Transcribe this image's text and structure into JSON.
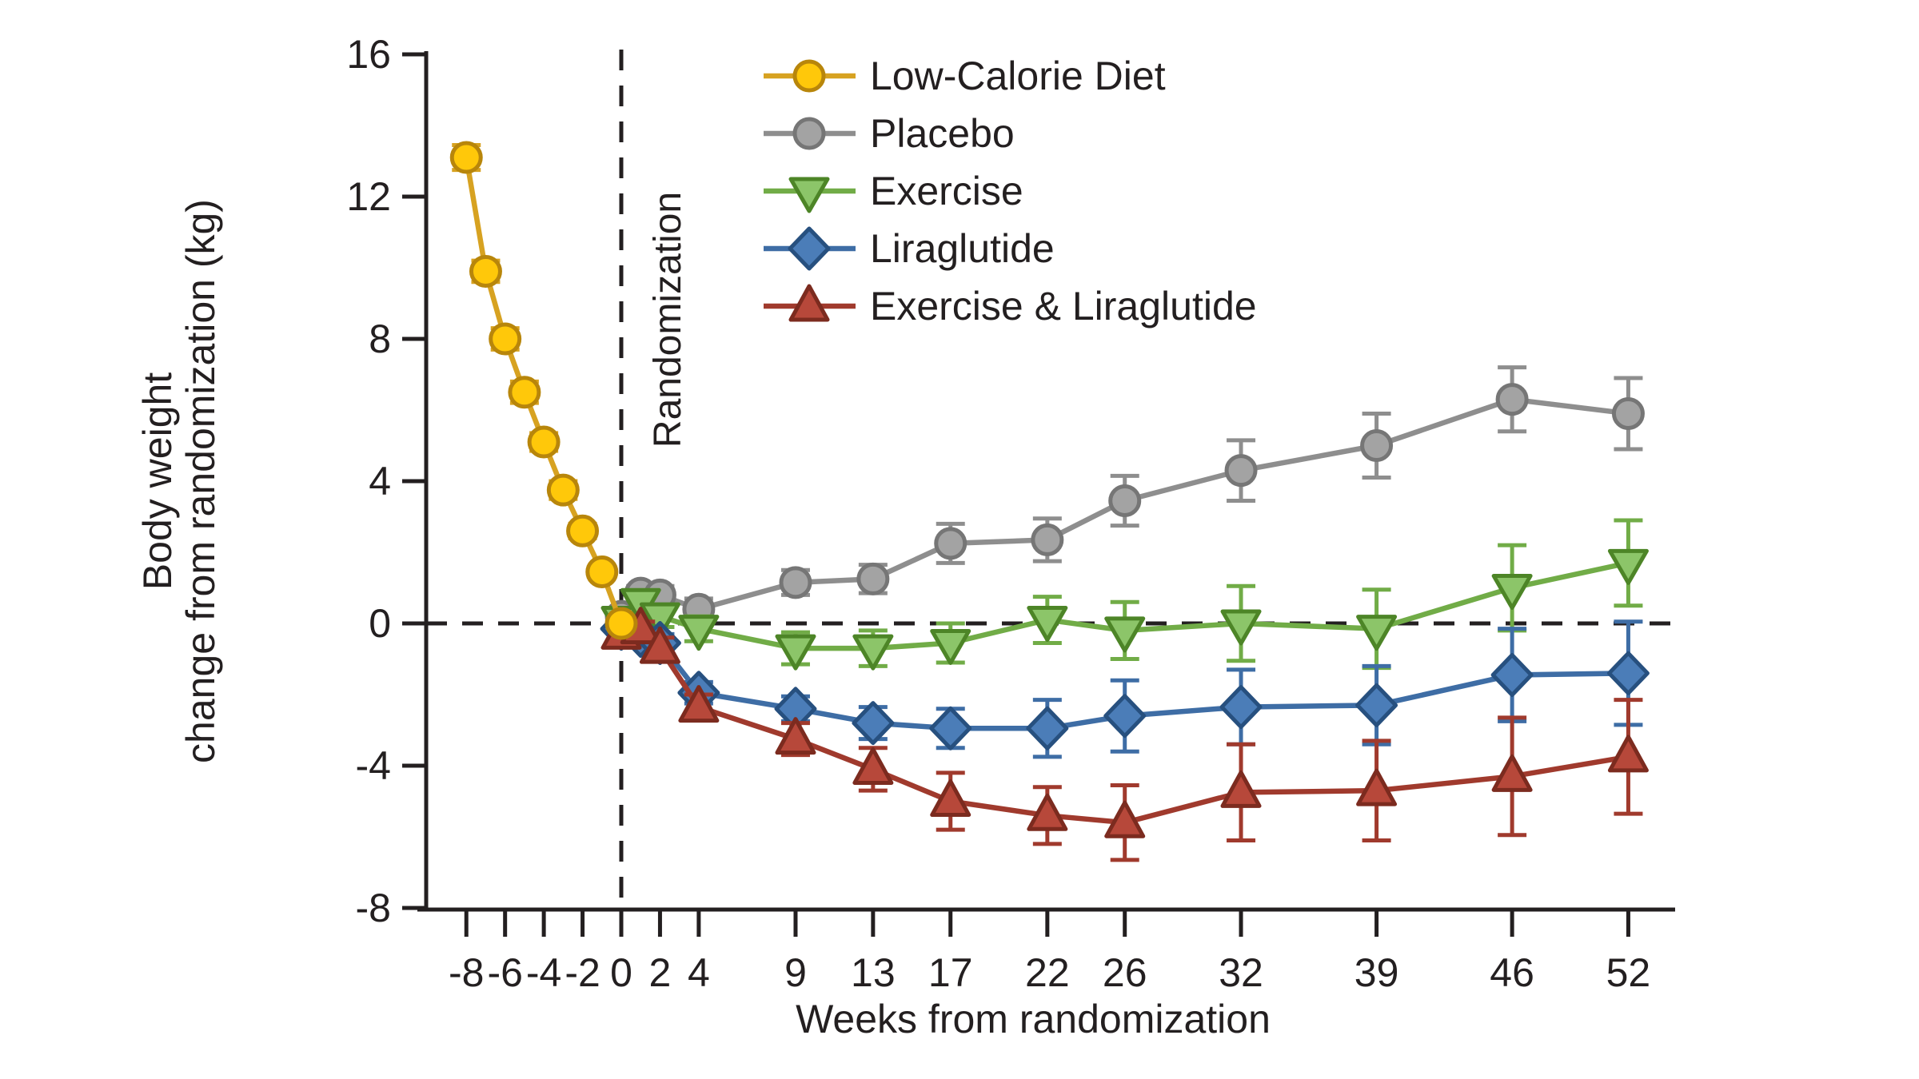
{
  "chart_data": {
    "type": "line",
    "title": "",
    "xlabel": "Weeks from randomization",
    "ylabel_line1": "Body weight",
    "ylabel_line2": "change from randomization (kg)",
    "annotation_randomization": "Randomization",
    "xlim": [
      -10.2,
      54.5
    ],
    "ylim": [
      -8,
      16
    ],
    "x_ticks": [
      -8,
      -6,
      -4,
      -2,
      0,
      2,
      4,
      9,
      13,
      17,
      22,
      26,
      32,
      39,
      46,
      52
    ],
    "y_ticks": [
      16,
      12,
      8,
      4,
      0,
      -4,
      -8
    ],
    "grid": "off",
    "reference_lines": {
      "vertical_at_week": 0,
      "horizontal_at_kg": 0,
      "style": "dashed",
      "color": "#231f20"
    },
    "axis_color": "#231f20",
    "legend_position": "top-center",
    "series": [
      {
        "name": "Low-Calorie Diet",
        "marker": "circle",
        "line_color": "#d7a221",
        "fill": "#ffc80a",
        "edge": "#b8860b",
        "x": [
          -8,
          -7,
          -6,
          -5,
          -4,
          -3,
          -2,
          -1,
          0
        ],
        "y": [
          13.1,
          9.9,
          8.0,
          6.5,
          5.1,
          3.75,
          2.6,
          1.45,
          0
        ],
        "err": [
          0.35,
          0.3,
          0.3,
          0.3,
          0.25,
          0.25,
          0.2,
          0.15,
          0.1
        ]
      },
      {
        "name": "Placebo",
        "marker": "circle",
        "line_color": "#8e8e8e",
        "fill": "#a3a3a3",
        "edge": "#767676",
        "x": [
          0,
          1,
          2,
          4,
          9,
          13,
          17,
          22,
          26,
          32,
          39,
          46,
          52
        ],
        "y": [
          0.2,
          0.85,
          0.8,
          0.4,
          1.15,
          1.25,
          2.25,
          2.35,
          3.45,
          4.3,
          5.0,
          6.3,
          5.9
        ],
        "err": [
          0.15,
          0.2,
          0.25,
          0.3,
          0.35,
          0.4,
          0.55,
          0.6,
          0.7,
          0.85,
          0.9,
          0.9,
          1.0
        ]
      },
      {
        "name": "Exercise",
        "marker": "triangle-down",
        "line_color": "#71ac47",
        "fill": "#8cc569",
        "edge": "#4d8527",
        "x": [
          0,
          1,
          2,
          4,
          9,
          13,
          17,
          22,
          26,
          32,
          39,
          46,
          52
        ],
        "y": [
          0.1,
          0.6,
          0.2,
          -0.15,
          -0.7,
          -0.7,
          -0.55,
          0.1,
          -0.2,
          0.0,
          -0.15,
          1.0,
          1.7
        ],
        "err": [
          0.15,
          0.2,
          0.3,
          0.35,
          0.45,
          0.5,
          0.55,
          0.65,
          0.8,
          1.05,
          1.1,
          1.2,
          1.2
        ]
      },
      {
        "name": "Liraglutide",
        "marker": "diamond",
        "line_color": "#3e6da5",
        "fill": "#4b7db8",
        "edge": "#27507f",
        "x": [
          0,
          1,
          2,
          4,
          9,
          13,
          17,
          22,
          26,
          32,
          39,
          46,
          52
        ],
        "y": [
          -0.15,
          -0.35,
          -0.55,
          -1.95,
          -2.4,
          -2.8,
          -2.95,
          -2.95,
          -2.6,
          -2.35,
          -2.3,
          -1.45,
          -1.4
        ],
        "err": [
          0.15,
          0.2,
          0.25,
          0.3,
          0.35,
          0.45,
          0.55,
          0.8,
          1.0,
          1.05,
          1.1,
          1.3,
          1.45
        ]
      },
      {
        "name": "Exercise & Liraglutide",
        "marker": "triangle-up",
        "line_color": "#a03a2d",
        "fill": "#b7483a",
        "edge": "#7c2b1f",
        "x": [
          0,
          1,
          2,
          4,
          9,
          13,
          17,
          22,
          26,
          32,
          39,
          46,
          52
        ],
        "y": [
          -0.3,
          -0.15,
          -0.7,
          -2.35,
          -3.25,
          -4.1,
          -5.0,
          -5.4,
          -5.6,
          -4.75,
          -4.7,
          -4.3,
          -3.75
        ],
        "err": [
          0.15,
          0.2,
          0.3,
          0.35,
          0.45,
          0.6,
          0.8,
          0.8,
          1.05,
          1.35,
          1.4,
          1.65,
          1.6
        ]
      }
    ]
  }
}
